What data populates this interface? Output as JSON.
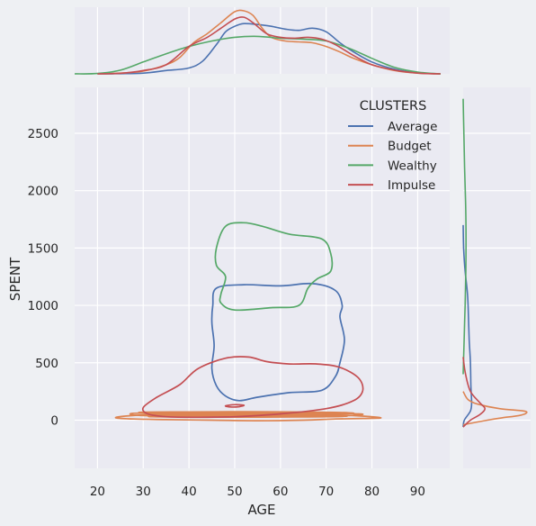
{
  "chart_data": {
    "type": "jointplot-kde",
    "xlabel": "AGE",
    "ylabel": "SPENT",
    "xlim": [
      15,
      97
    ],
    "ylim": [
      -420,
      2900
    ],
    "xticks": [
      20,
      30,
      40,
      50,
      60,
      70,
      80,
      90
    ],
    "yticks": [
      0,
      500,
      1000,
      1500,
      2000,
      2500
    ],
    "grid": true,
    "legend": {
      "title": "CLUSTERS",
      "placement": "top-right"
    },
    "series": [
      {
        "name": "Average",
        "color": "#4c72b0",
        "contours": [
          [
            [
              46,
              1150
            ],
            [
              52,
              1180
            ],
            [
              60,
              1170
            ],
            [
              67,
              1190
            ],
            [
              72,
              1130
            ],
            [
              73.5,
              1000
            ],
            [
              73,
              900
            ],
            [
              74,
              700
            ],
            [
              73,
              500
            ],
            [
              72,
              380
            ],
            [
              69,
              260
            ],
            [
              62,
              240
            ],
            [
              55,
              200
            ],
            [
              51,
              170
            ],
            [
              48,
              210
            ],
            [
              46,
              300
            ],
            [
              45,
              450
            ],
            [
              45.5,
              650
            ],
            [
              45,
              850
            ],
            [
              45.2,
              1000
            ],
            [
              46,
              1150
            ]
          ]
        ],
        "age_density": [
          [
            20,
            0
          ],
          [
            25,
            0.001
          ],
          [
            30,
            0.004
          ],
          [
            35,
            0.018
          ],
          [
            40,
            0.032
          ],
          [
            43,
            0.07
          ],
          [
            46,
            0.16
          ],
          [
            48,
            0.23
          ],
          [
            50,
            0.26
          ],
          [
            52,
            0.275
          ],
          [
            55,
            0.27
          ],
          [
            58,
            0.26
          ],
          [
            61,
            0.245
          ],
          [
            64,
            0.238
          ],
          [
            67,
            0.25
          ],
          [
            70,
            0.23
          ],
          [
            73,
            0.17
          ],
          [
            76,
            0.12
          ],
          [
            80,
            0.065
          ],
          [
            85,
            0.025
          ],
          [
            90,
            0.005
          ],
          [
            95,
            0
          ]
        ],
        "spent_density": [
          [
            -60,
            0
          ],
          [
            0,
            0.05
          ],
          [
            80,
            0.3
          ],
          [
            150,
            0.35
          ],
          [
            300,
            0.32
          ],
          [
            500,
            0.3
          ],
          [
            700,
            0.25
          ],
          [
            900,
            0.22
          ],
          [
            1100,
            0.18
          ],
          [
            1300,
            0.08
          ],
          [
            1500,
            0.02
          ],
          [
            1700,
            0
          ]
        ]
      },
      {
        "name": "Budget",
        "color": "#dd8452",
        "contours": [
          [
            [
              24,
              20
            ],
            [
              28,
              10
            ],
            [
              35,
              5
            ],
            [
              45,
              0
            ],
            [
              55,
              -5
            ],
            [
              65,
              0
            ],
            [
              72,
              10
            ],
            [
              78,
              15
            ],
            [
              82,
              20
            ],
            [
              78,
              35
            ],
            [
              72,
              45
            ],
            [
              62,
              50
            ],
            [
              52,
              55
            ],
            [
              42,
              55
            ],
            [
              32,
              48
            ],
            [
              26,
              35
            ],
            [
              24,
              20
            ]
          ],
          [
            [
              28,
              60
            ],
            [
              36,
              62
            ],
            [
              46,
              65
            ],
            [
              56,
              68
            ],
            [
              66,
              66
            ],
            [
              74,
              60
            ],
            [
              78,
              50
            ],
            [
              72,
              35
            ],
            [
              62,
              30
            ],
            [
              52,
              28
            ],
            [
              42,
              30
            ],
            [
              34,
              35
            ],
            [
              28,
              45
            ],
            [
              28,
              60
            ]
          ],
          [
            [
              30,
              70
            ],
            [
              40,
              72
            ],
            [
              52,
              74
            ],
            [
              62,
              72
            ],
            [
              72,
              68
            ],
            [
              76,
              60
            ],
            [
              70,
              52
            ],
            [
              58,
              50
            ],
            [
              46,
              50
            ],
            [
              36,
              52
            ],
            [
              30,
              60
            ],
            [
              30,
              70
            ]
          ],
          [
            [
              32,
              30
            ],
            [
              40,
              28
            ],
            [
              52,
              26
            ],
            [
              64,
              28
            ],
            [
              74,
              34
            ],
            [
              72,
              42
            ],
            [
              60,
              44
            ],
            [
              48,
              44
            ],
            [
              38,
              42
            ],
            [
              32,
              38
            ],
            [
              32,
              30
            ]
          ],
          [
            [
              34,
              40
            ],
            [
              44,
              38
            ],
            [
              54,
              38
            ],
            [
              64,
              40
            ],
            [
              70,
              46
            ],
            [
              62,
              50
            ],
            [
              50,
              50
            ],
            [
              40,
              48
            ],
            [
              34,
              46
            ],
            [
              34,
              40
            ]
          ],
          [
            [
              36,
              56
            ],
            [
              46,
              58
            ],
            [
              56,
              60
            ],
            [
              66,
              58
            ],
            [
              68,
              52
            ],
            [
              58,
              54
            ],
            [
              48,
              54
            ],
            [
              40,
              54
            ],
            [
              36,
              56
            ]
          ]
        ],
        "age_density": [
          [
            20,
            0
          ],
          [
            25,
            0.004
          ],
          [
            30,
            0.015
          ],
          [
            35,
            0.05
          ],
          [
            38,
            0.09
          ],
          [
            41,
            0.17
          ],
          [
            44,
            0.22
          ],
          [
            47,
            0.28
          ],
          [
            50,
            0.34
          ],
          [
            52,
            0.345
          ],
          [
            54,
            0.32
          ],
          [
            56,
            0.25
          ],
          [
            58,
            0.2
          ],
          [
            61,
            0.18
          ],
          [
            64,
            0.175
          ],
          [
            67,
            0.17
          ],
          [
            70,
            0.15
          ],
          [
            73,
            0.12
          ],
          [
            76,
            0.085
          ],
          [
            80,
            0.05
          ],
          [
            85,
            0.018
          ],
          [
            90,
            0.004
          ],
          [
            95,
            0
          ]
        ],
        "spent_density": [
          [
            -40,
            0
          ],
          [
            0,
            1.0
          ],
          [
            20,
            1.6
          ],
          [
            40,
            2.3
          ],
          [
            60,
            2.6
          ],
          [
            80,
            2.5
          ],
          [
            100,
            1.5
          ],
          [
            140,
            0.6
          ],
          [
            180,
            0.2
          ],
          [
            250,
            0
          ]
        ]
      },
      {
        "name": "Wealthy",
        "color": "#55a868",
        "contours": [
          [
            [
              48,
              1690
            ],
            [
              52,
              1720
            ],
            [
              56,
              1690
            ],
            [
              62,
              1620
            ],
            [
              69,
              1580
            ],
            [
              71,
              1450
            ],
            [
              71,
              1300
            ],
            [
              68,
              1230
            ],
            [
              66,
              1150
            ],
            [
              64,
              1000
            ],
            [
              58,
              980
            ],
            [
              50,
              960
            ],
            [
              47,
              1020
            ],
            [
              47,
              1100
            ],
            [
              48,
              1250
            ],
            [
              46,
              1350
            ],
            [
              46,
              1500
            ],
            [
              48,
              1690
            ]
          ]
        ],
        "age_density": [
          [
            15,
            0
          ],
          [
            20,
            0.002
          ],
          [
            25,
            0.02
          ],
          [
            30,
            0.065
          ],
          [
            35,
            0.11
          ],
          [
            40,
            0.15
          ],
          [
            45,
            0.18
          ],
          [
            50,
            0.2
          ],
          [
            55,
            0.205
          ],
          [
            60,
            0.195
          ],
          [
            65,
            0.19
          ],
          [
            70,
            0.18
          ],
          [
            75,
            0.14
          ],
          [
            80,
            0.085
          ],
          [
            85,
            0.035
          ],
          [
            90,
            0.01
          ],
          [
            95,
            0
          ]
        ],
        "spent_density": [
          [
            400,
            0
          ],
          [
            700,
            0.04
          ],
          [
            1000,
            0.08
          ],
          [
            1300,
            0.11
          ],
          [
            1600,
            0.12
          ],
          [
            1900,
            0.1
          ],
          [
            2200,
            0.06
          ],
          [
            2500,
            0.03
          ],
          [
            2800,
            0
          ]
        ]
      },
      {
        "name": "Impulse",
        "color": "#c44e52",
        "contours": [
          [
            [
              30,
              110
            ],
            [
              33,
              200
            ],
            [
              38,
              310
            ],
            [
              42,
              450
            ],
            [
              48,
              540
            ],
            [
              53,
              550
            ],
            [
              57,
              510
            ],
            [
              62,
              490
            ],
            [
              68,
              490
            ],
            [
              73,
              460
            ],
            [
              77,
              370
            ],
            [
              78,
              260
            ],
            [
              76,
              170
            ],
            [
              70,
              100
            ],
            [
              60,
              55
            ],
            [
              50,
              30
            ],
            [
              42,
              25
            ],
            [
              35,
              30
            ],
            [
              31,
              55
            ],
            [
              30,
              110
            ]
          ],
          [
            [
              48,
              125
            ],
            [
              50,
              135
            ],
            [
              52,
              130
            ],
            [
              51,
              118
            ],
            [
              49,
              115
            ],
            [
              48,
              125
            ]
          ]
        ],
        "age_density": [
          [
            20,
            0
          ],
          [
            25,
            0.003
          ],
          [
            30,
            0.018
          ],
          [
            35,
            0.05
          ],
          [
            40,
            0.15
          ],
          [
            44,
            0.2
          ],
          [
            47,
            0.25
          ],
          [
            50,
            0.3
          ],
          [
            52,
            0.31
          ],
          [
            54,
            0.28
          ],
          [
            57,
            0.22
          ],
          [
            60,
            0.2
          ],
          [
            63,
            0.195
          ],
          [
            66,
            0.2
          ],
          [
            69,
            0.19
          ],
          [
            72,
            0.16
          ],
          [
            76,
            0.1
          ],
          [
            80,
            0.05
          ],
          [
            85,
            0.02
          ],
          [
            90,
            0.004
          ],
          [
            95,
            0
          ]
        ],
        "spent_density": [
          [
            -60,
            0
          ],
          [
            0,
            0.3
          ],
          [
            50,
            0.7
          ],
          [
            100,
            0.9
          ],
          [
            150,
            0.7
          ],
          [
            250,
            0.3
          ],
          [
            400,
            0.1
          ],
          [
            550,
            0
          ]
        ]
      }
    ]
  }
}
